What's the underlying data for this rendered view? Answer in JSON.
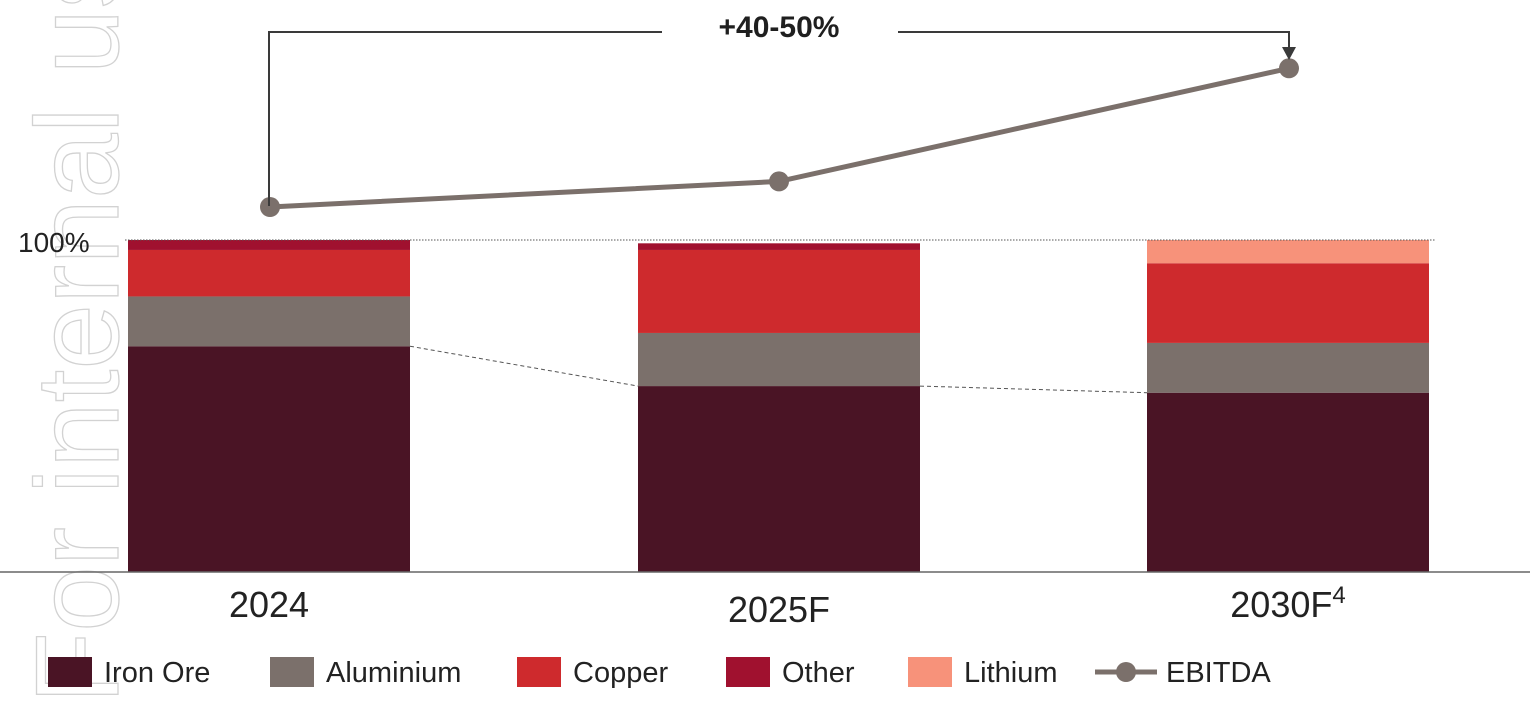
{
  "watermark": "For internal use only",
  "colors": {
    "iron_ore": "#4a1425",
    "aluminium": "#7b706b",
    "copper": "#ce2a2d",
    "other": "#a0112f",
    "lithium": "#f7927a",
    "ebitda": "#7b706b"
  },
  "chart_data": {
    "type": "bar",
    "stacked": true,
    "categories": [
      "2024",
      "2025F",
      "2030F"
    ],
    "category_superscripts": [
      "",
      "",
      "4"
    ],
    "ytick_label": "100%",
    "ylim": [
      0,
      100
    ],
    "series": [
      {
        "name": "Iron Ore",
        "color_key": "iron_ore",
        "values": [
          68,
          56,
          54
        ]
      },
      {
        "name": "Aluminium",
        "color_key": "aluminium",
        "values": [
          15,
          16,
          15
        ]
      },
      {
        "name": "Copper",
        "color_key": "copper",
        "values": [
          14,
          25,
          24
        ]
      },
      {
        "name": "Other",
        "color_key": "other",
        "values": [
          3,
          2,
          0
        ]
      },
      {
        "name": "Lithium",
        "color_key": "lithium",
        "values": [
          0,
          0,
          7
        ]
      }
    ],
    "line_series": {
      "name": "EBITDA",
      "color_key": "ebitda",
      "relative_values": [
        100,
        107,
        138
      ]
    },
    "annotation": "+40-50%",
    "legend_position": "bottom",
    "grid": false
  }
}
